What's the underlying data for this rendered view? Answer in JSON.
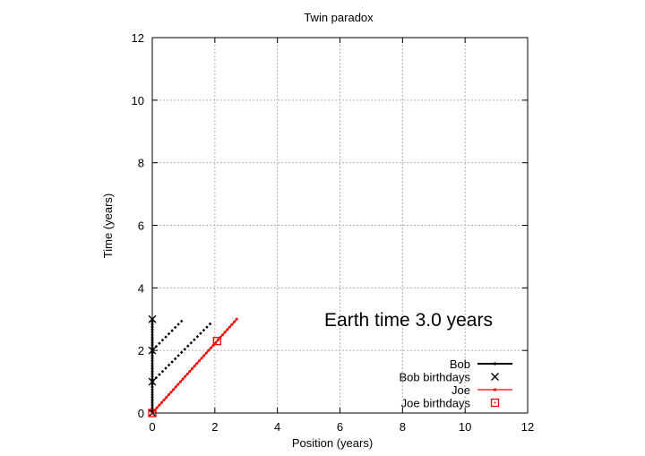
{
  "chart_data": {
    "type": "scatter",
    "title": "Twin paradox",
    "xlabel": "Position (years)",
    "ylabel": "Time (years)",
    "xlim": [
      0,
      12
    ],
    "ylim": [
      0,
      12
    ],
    "xticks": [
      "0",
      "2",
      "4",
      "6",
      "8",
      "10",
      "12"
    ],
    "yticks": [
      "0",
      "2",
      "4",
      "6",
      "8",
      "10",
      "12"
    ],
    "grid": true,
    "legend_position": "bottom-right",
    "annotation": "Earth time  3.0 years",
    "colors": {
      "black": "#000000",
      "red": "#ff0000",
      "grid": "#b0b0b0"
    },
    "series": [
      {
        "name": "Bob",
        "style": "line-points",
        "color": "#000000",
        "x": [
          0,
          0
        ],
        "y": [
          0,
          3.0
        ]
      },
      {
        "name": "Bob birthdays",
        "style": "cross",
        "color": "#000000",
        "x": [
          0,
          0,
          0,
          0
        ],
        "y": [
          0,
          1,
          2,
          3
        ]
      },
      {
        "name": "Joe",
        "style": "line-points",
        "color": "#ff0000",
        "x": [
          0,
          2.7
        ],
        "y": [
          0,
          3.0
        ]
      },
      {
        "name": "Joe birthdays",
        "style": "square",
        "color": "#ff0000",
        "x": [
          0,
          2.07
        ],
        "y": [
          0,
          2.3
        ]
      }
    ],
    "light_rays": [
      {
        "x": [
          0,
          1.0
        ],
        "y": [
          2.0,
          3.0
        ]
      },
      {
        "x": [
          0,
          1.9
        ],
        "y": [
          1.0,
          2.9
        ]
      }
    ]
  }
}
